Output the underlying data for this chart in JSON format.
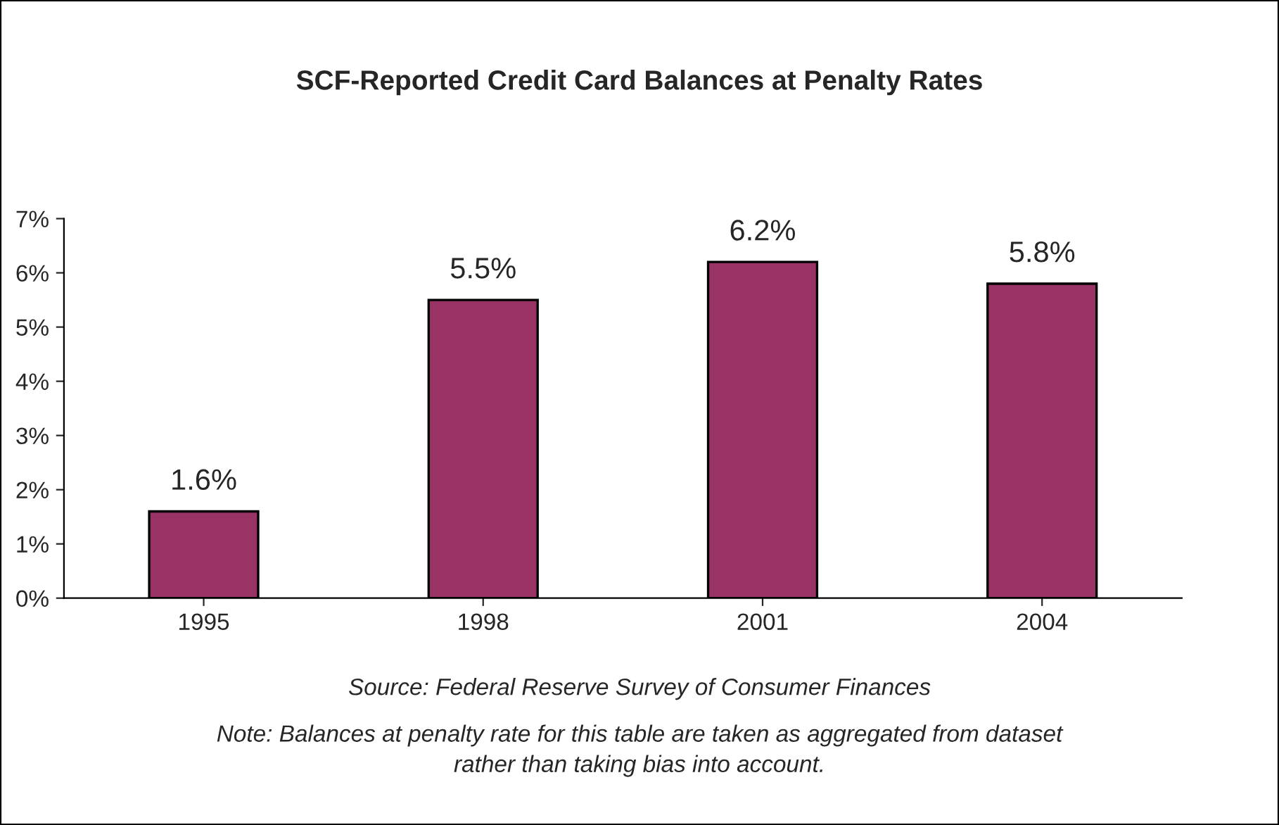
{
  "chart_data": {
    "type": "bar",
    "title": "SCF-Reported Credit Card Balances at Penalty Rates",
    "categories": [
      "1995",
      "1998",
      "2001",
      "2004"
    ],
    "values": [
      1.6,
      5.5,
      6.2,
      5.8
    ],
    "value_labels": [
      "1.6%",
      "5.5%",
      "6.2%",
      "5.8%"
    ],
    "color": "#993366",
    "ylim": [
      0,
      7
    ],
    "yticks": [
      {
        "value": 0,
        "label": "0%"
      },
      {
        "value": 1,
        "label": "1%"
      },
      {
        "value": 2,
        "label": "2%"
      },
      {
        "value": 3,
        "label": "3%"
      },
      {
        "value": 4,
        "label": "4%"
      },
      {
        "value": 5,
        "label": "5%"
      },
      {
        "value": 6,
        "label": "6%"
      },
      {
        "value": 7,
        "label": "7%"
      }
    ],
    "grid": false,
    "annotations": [
      "Source: Federal Reserve Survey of Consumer Finances",
      "Note: Balances at penalty rate for this table are taken as aggregated from dataset\nrather than taking bias into account."
    ]
  }
}
